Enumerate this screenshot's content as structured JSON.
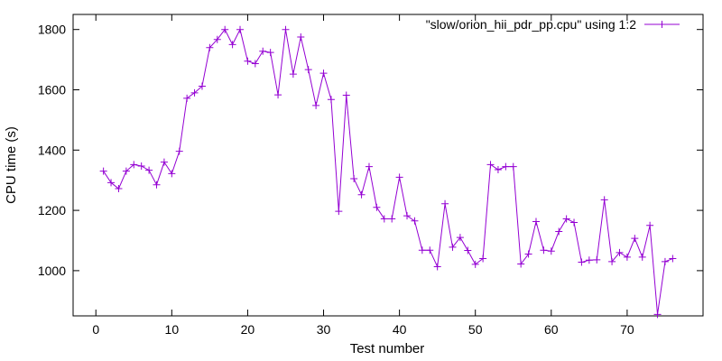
{
  "chart_data": {
    "type": "line",
    "xlabel": "Test number",
    "ylabel": "CPU time (s)",
    "xlim": [
      -3,
      80
    ],
    "ylim": [
      850,
      1850
    ],
    "xticks": [
      0,
      10,
      20,
      30,
      40,
      50,
      60,
      70
    ],
    "yticks": [
      1000,
      1200,
      1400,
      1600,
      1800
    ],
    "grid": false,
    "legend_position": "top-right",
    "series": [
      {
        "name": "\"slow/orion_hii_pdr_pp.cpu\" using 1:2",
        "color": "#9400d3",
        "marker": "plus",
        "x": [
          1,
          2,
          3,
          4,
          5,
          6,
          7,
          8,
          9,
          10,
          11,
          12,
          13,
          14,
          15,
          16,
          17,
          18,
          19,
          20,
          21,
          22,
          23,
          24,
          25,
          26,
          27,
          28,
          29,
          30,
          31,
          32,
          33,
          34,
          35,
          36,
          37,
          38,
          39,
          40,
          41,
          42,
          43,
          44,
          45,
          46,
          47,
          48,
          49,
          50,
          51,
          52,
          53,
          54,
          55,
          56,
          57,
          58,
          59,
          60,
          61,
          62,
          63,
          64,
          65,
          66,
          67,
          68,
          69,
          70,
          71,
          72,
          73,
          74,
          75,
          76
        ],
        "y": [
          1330,
          1292,
          1272,
          1330,
          1352,
          1347,
          1333,
          1285,
          1360,
          1322,
          1396,
          1572,
          1590,
          1612,
          1740,
          1767,
          1800,
          1750,
          1800,
          1695,
          1687,
          1728,
          1724,
          1583,
          1800,
          1652,
          1775,
          1667,
          1548,
          1655,
          1568,
          1197,
          1582,
          1305,
          1252,
          1345,
          1210,
          1172,
          1172,
          1310,
          1182,
          1165,
          1068,
          1068,
          1013,
          1222,
          1078,
          1110,
          1067,
          1021,
          1040,
          1352,
          1335,
          1345,
          1345,
          1022,
          1055,
          1163,
          1068,
          1065,
          1130,
          1172,
          1160,
          1028,
          1035,
          1036,
          1235,
          1030,
          1060,
          1045,
          1107,
          1045,
          1150,
          855,
          1030,
          1040
        ]
      }
    ]
  }
}
